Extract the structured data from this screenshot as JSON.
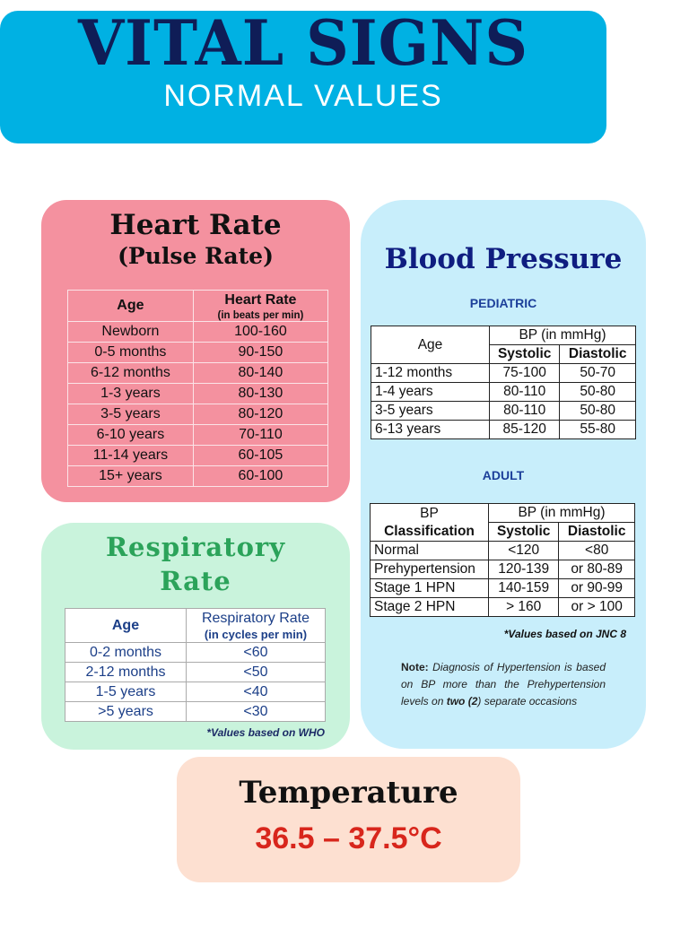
{
  "header": {
    "title": "VITAL SIGNS",
    "subtitle": "NORMAL VALUES"
  },
  "heart": {
    "title": "Heart Rate",
    "subtitle": "(Pulse Rate)",
    "col_age": "Age",
    "col_rate": "Heart Rate",
    "col_rate_unit": "(in beats per min)",
    "rows": [
      [
        "Newborn",
        "100-160"
      ],
      [
        "0-5 months",
        "90-150"
      ],
      [
        "6-12 months",
        "80-140"
      ],
      [
        "1-3 years",
        "80-130"
      ],
      [
        "3-5 years",
        "80-120"
      ],
      [
        "6-10 years",
        "70-110"
      ],
      [
        "11-14 years",
        "60-105"
      ],
      [
        "15+ years",
        "60-100"
      ]
    ]
  },
  "resp": {
    "title_line1": "Respiratory",
    "title_line2": "Rate",
    "col_age": "Age",
    "col_rate": "Respiratory Rate",
    "col_rate_unit": "(in cycles per min)",
    "rows": [
      [
        "0-2 months",
        "<60"
      ],
      [
        "2-12 months",
        "<50"
      ],
      [
        "1-5 years",
        "<40"
      ],
      [
        ">5 years",
        "<30"
      ]
    ],
    "footnote": "*Values based on WHO"
  },
  "bp": {
    "title": "Blood Pressure",
    "pediatric_label": "PEDIATRIC",
    "adult_label": "ADULT",
    "pediatric": {
      "col_age": "Age",
      "col_bp": "BP (in mmHg)",
      "col_sys": "Systolic",
      "col_dia": "Diastolic",
      "rows": [
        [
          "1-12 months",
          "75-100",
          "50-70"
        ],
        [
          "1-4 years",
          "80-110",
          "50-80"
        ],
        [
          "3-5 years",
          "80-110",
          "50-80"
        ],
        [
          "6-13 years",
          "85-120",
          "55-80"
        ]
      ]
    },
    "adult": {
      "col_class1": "BP",
      "col_class2": "Classification",
      "col_bp": "BP (in mmHg)",
      "col_sys": "Systolic",
      "col_dia": "Diastolic",
      "rows": [
        [
          "Normal",
          "<120",
          "<80"
        ],
        [
          "Prehypertension",
          "120-139",
          "or 80-89"
        ],
        [
          "Stage 1 HPN",
          "140-159",
          "or 90-99"
        ],
        [
          "Stage 2 HPN",
          "> 160",
          "or > 100"
        ]
      ]
    },
    "footnote": "*Values based on JNC 8",
    "note": {
      "label": "Note:",
      "text1": " Diagnosis of Hypertension is based on BP more than the Prehypertension levels on ",
      "bold": "two (2",
      "text2": ") separate occasions"
    }
  },
  "temp": {
    "title": "Temperature",
    "value": "36.5 – 37.5°C"
  }
}
